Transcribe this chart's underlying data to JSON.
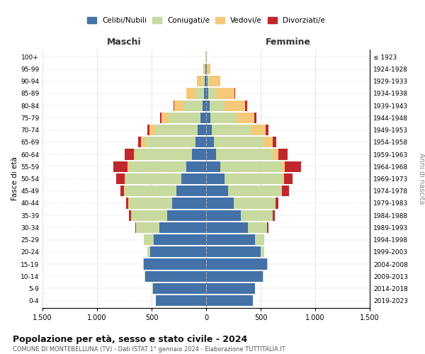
{
  "age_groups": [
    "0-4",
    "5-9",
    "10-14",
    "15-19",
    "20-24",
    "25-29",
    "30-34",
    "35-39",
    "40-44",
    "45-49",
    "50-54",
    "55-59",
    "60-64",
    "65-69",
    "70-74",
    "75-79",
    "80-84",
    "85-89",
    "90-94",
    "95-99",
    "100+"
  ],
  "birth_years": [
    "2019-2023",
    "2014-2018",
    "2009-2013",
    "2004-2008",
    "1999-2003",
    "1994-1998",
    "1989-1993",
    "1984-1988",
    "1979-1983",
    "1974-1978",
    "1969-1973",
    "1964-1968",
    "1959-1963",
    "1954-1958",
    "1949-1953",
    "1944-1948",
    "1939-1943",
    "1934-1938",
    "1929-1933",
    "1924-1928",
    "≤ 1923"
  ],
  "colors": {
    "celibi": "#4472a8",
    "coniugati": "#c8daa0",
    "vedovi": "#f5c97a",
    "divorziati": "#c0272d"
  },
  "maschi": {
    "celibi": [
      460,
      490,
      560,
      570,
      510,
      480,
      430,
      360,
      310,
      270,
      230,
      180,
      130,
      100,
      80,
      55,
      30,
      20,
      10,
      5,
      2
    ],
    "coniugati": [
      1,
      2,
      5,
      10,
      30,
      90,
      210,
      330,
      400,
      480,
      510,
      530,
      510,
      460,
      390,
      290,
      180,
      80,
      25,
      5,
      0
    ],
    "vedovi": [
      0,
      0,
      0,
      0,
      0,
      0,
      1,
      1,
      2,
      3,
      5,
      10,
      20,
      35,
      50,
      65,
      80,
      80,
      50,
      15,
      2
    ],
    "divorziati": [
      0,
      0,
      0,
      0,
      1,
      3,
      8,
      15,
      20,
      30,
      80,
      130,
      90,
      30,
      20,
      15,
      10,
      5,
      2,
      0,
      0
    ]
  },
  "femmine": {
    "celibi": [
      430,
      450,
      520,
      560,
      500,
      450,
      380,
      320,
      250,
      200,
      170,
      130,
      90,
      70,
      55,
      40,
      30,
      20,
      10,
      5,
      2
    ],
    "coniugati": [
      0,
      1,
      3,
      8,
      30,
      80,
      180,
      290,
      380,
      490,
      530,
      560,
      520,
      450,
      360,
      240,
      140,
      70,
      20,
      5,
      0
    ],
    "vedovi": [
      0,
      0,
      0,
      0,
      0,
      0,
      1,
      2,
      4,
      8,
      15,
      30,
      55,
      90,
      130,
      160,
      190,
      170,
      100,
      30,
      5
    ],
    "divorziati": [
      0,
      0,
      0,
      0,
      1,
      3,
      8,
      15,
      30,
      60,
      80,
      150,
      80,
      35,
      25,
      20,
      15,
      8,
      3,
      0,
      0
    ]
  },
  "title": "Popolazione per età, sesso e stato civile - 2024",
  "subtitle": "COMUNE DI MONTEBELLUNA (TV) - Dati ISTAT 1° gennaio 2024 - Elaborazione TUTTITALIA.IT",
  "xlabel_maschi": "Maschi",
  "xlabel_femmine": "Femmine",
  "ylabel_left": "Fasce di età",
  "ylabel_right": "Anni di nascita",
  "xlim": 1500,
  "legend_labels": [
    "Celibi/Nubili",
    "Coniugati/e",
    "Vedovi/e",
    "Divorziati/e"
  ]
}
